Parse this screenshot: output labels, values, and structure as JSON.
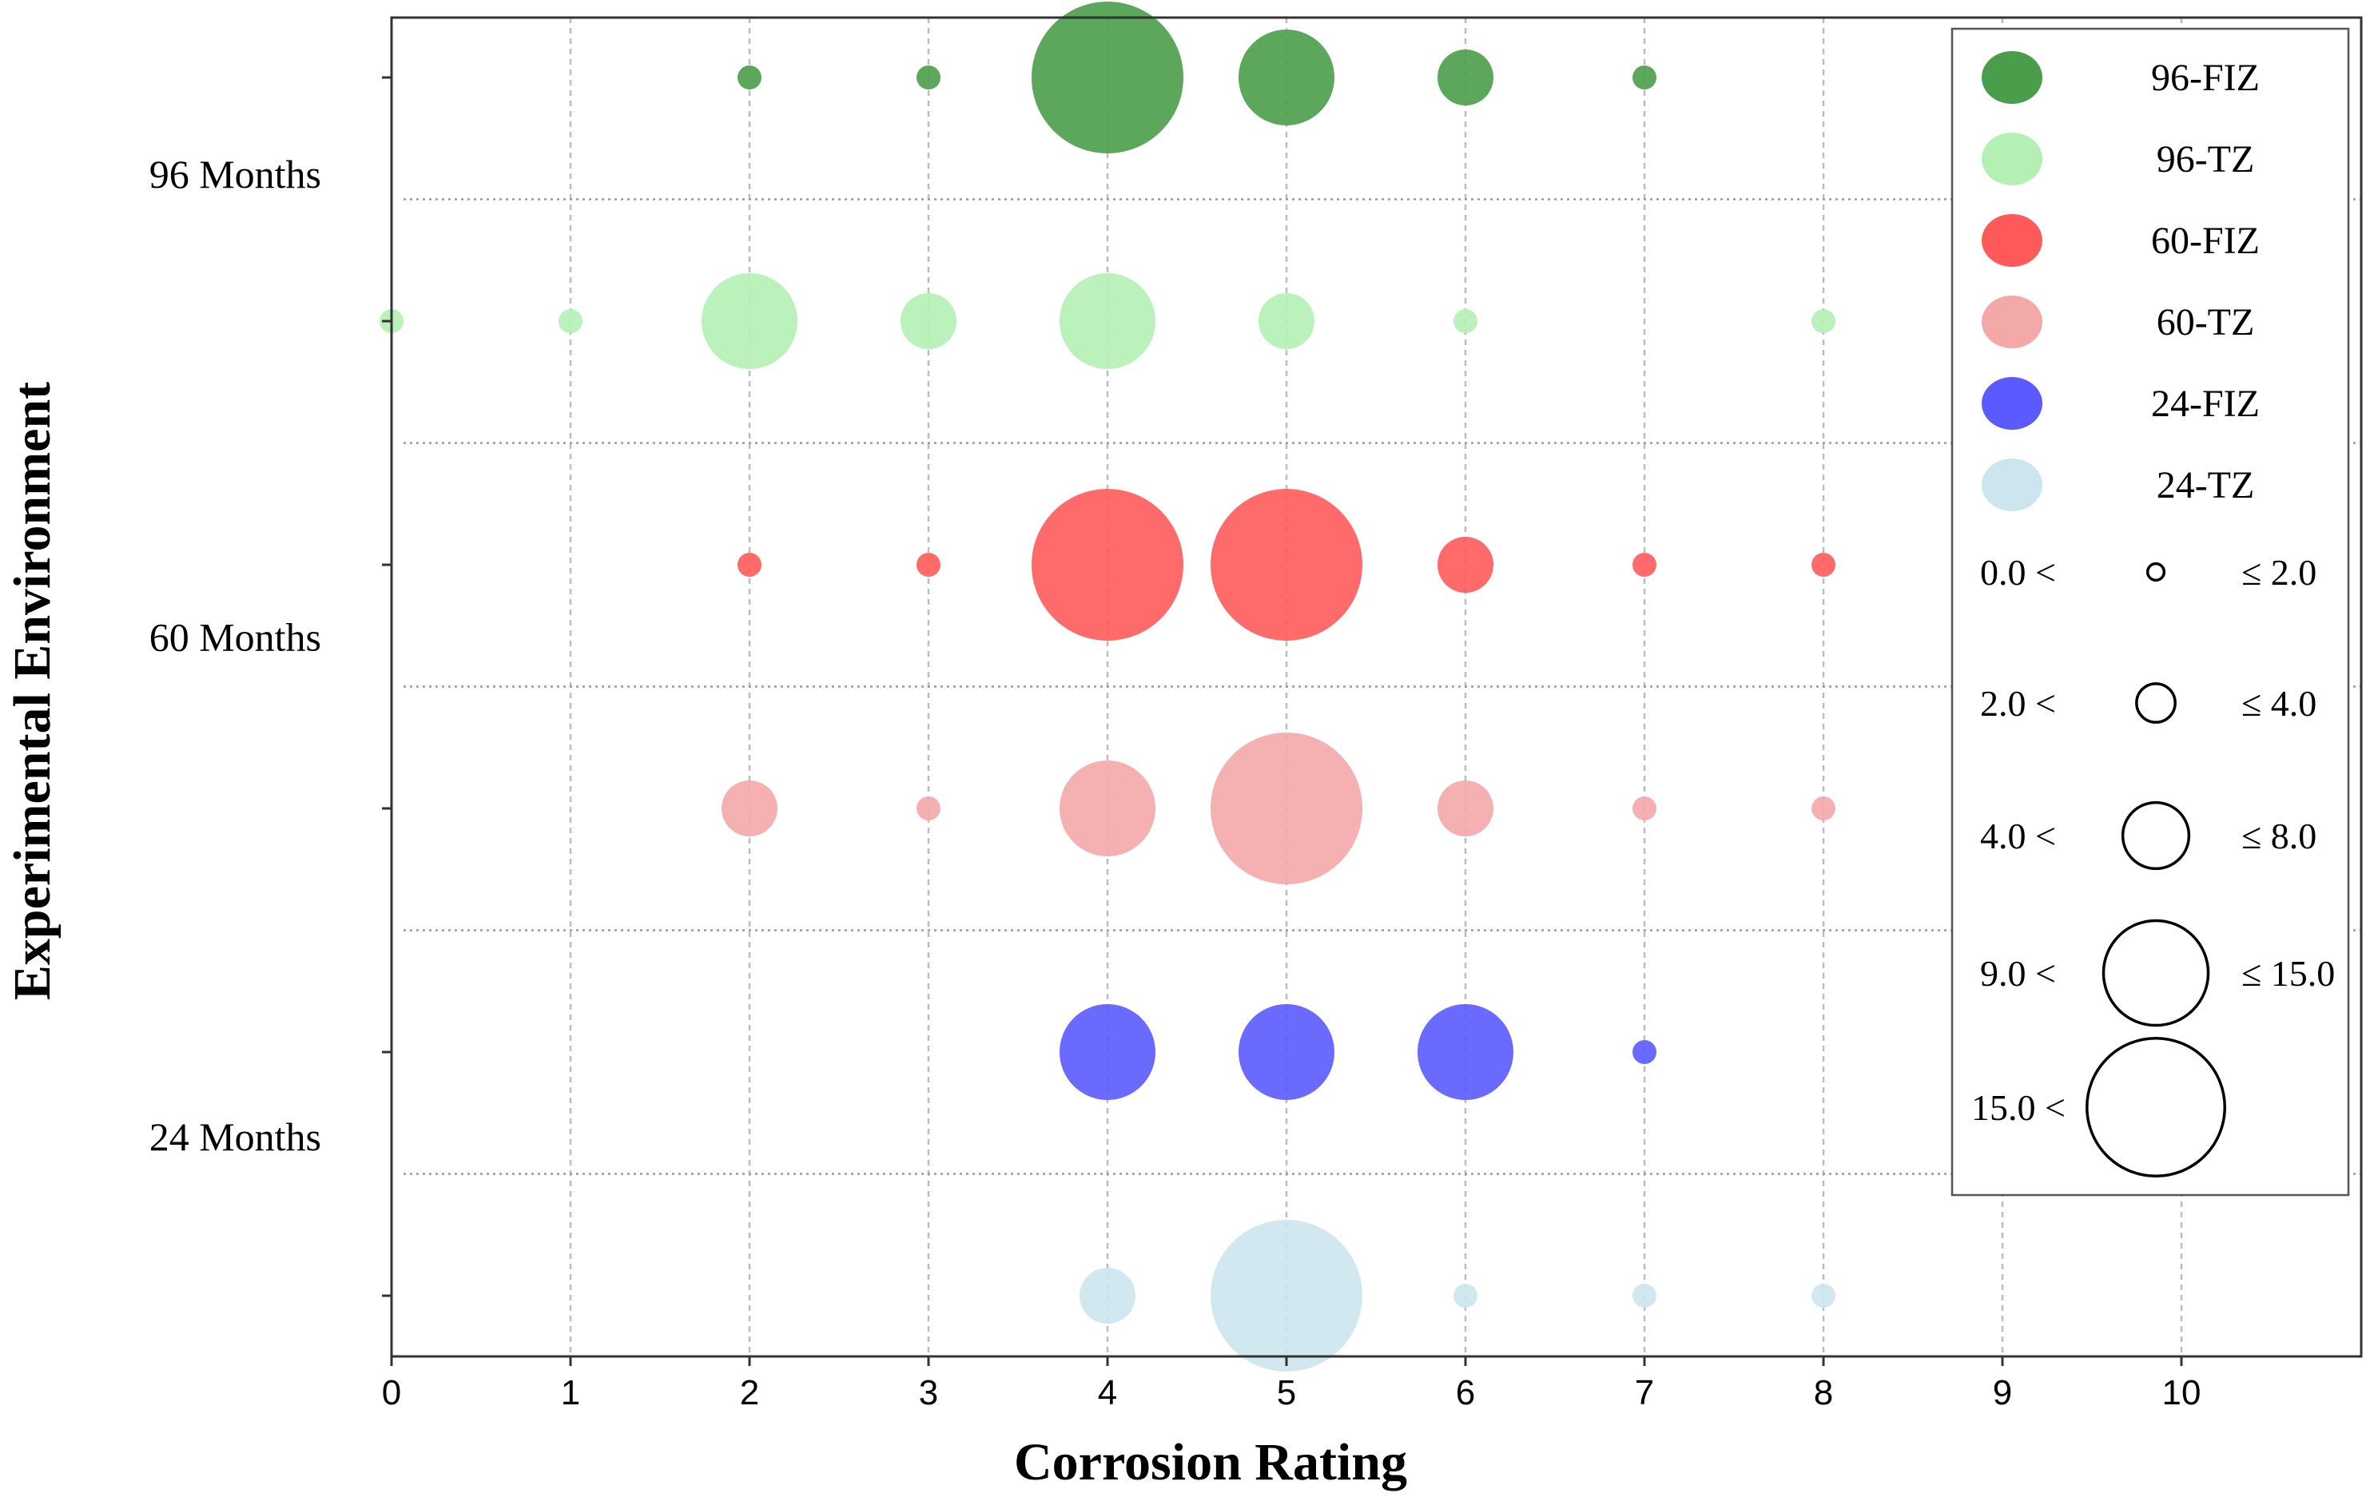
{
  "chart_data": {
    "type": "scatter",
    "subtype": "bubble",
    "title": "",
    "xlabel": "Corrosion Rating",
    "ylabel": "Experimental Environment",
    "xlim": [
      0,
      11
    ],
    "xticks": [
      "0",
      "1",
      "2",
      "3",
      "4",
      "5",
      "6",
      "7",
      "8",
      "9",
      "10"
    ],
    "ylim": [
      0.5,
      6.5
    ],
    "ytick_labels": [
      {
        "label": "96 Months",
        "y": 5.6
      },
      {
        "label": "60 Months",
        "y": 3.7
      },
      {
        "label": "24 Months",
        "y": 1.65
      }
    ],
    "grid": true,
    "legend_position": "top-right",
    "series": [
      {
        "name": "96-FIZ",
        "color": "#4a9d4a",
        "y": 6,
        "points": [
          {
            "x": 2,
            "r": 1.5
          },
          {
            "x": 3,
            "r": 1.5
          },
          {
            "x": 4,
            "r": 9.5
          },
          {
            "x": 5,
            "r": 6
          },
          {
            "x": 6,
            "r": 3.5
          },
          {
            "x": 7,
            "r": 1.5
          }
        ]
      },
      {
        "name": "96-TZ",
        "color": "#b4f0b4",
        "y": 5,
        "points": [
          {
            "x": 0,
            "r": 1.5
          },
          {
            "x": 1,
            "r": 1.5
          },
          {
            "x": 2,
            "r": 6
          },
          {
            "x": 3,
            "r": 3.5
          },
          {
            "x": 4,
            "r": 6
          },
          {
            "x": 5,
            "r": 3.5
          },
          {
            "x": 6,
            "r": 1.5
          },
          {
            "x": 8,
            "r": 1.5
          }
        ]
      },
      {
        "name": "60-FIZ",
        "color": "#ff5a5a",
        "y": 4,
        "points": [
          {
            "x": 2,
            "r": 1.5
          },
          {
            "x": 3,
            "r": 1.5
          },
          {
            "x": 4,
            "r": 9.5
          },
          {
            "x": 5,
            "r": 9.5
          },
          {
            "x": 6,
            "r": 3.5
          },
          {
            "x": 7,
            "r": 1.5
          },
          {
            "x": 8,
            "r": 1.5
          }
        ]
      },
      {
        "name": "60-TZ",
        "color": "#f4a9a9",
        "y": 3,
        "points": [
          {
            "x": 2,
            "r": 3.5
          },
          {
            "x": 3,
            "r": 1.5
          },
          {
            "x": 4,
            "r": 6
          },
          {
            "x": 5,
            "r": 9.5
          },
          {
            "x": 6,
            "r": 3.5
          },
          {
            "x": 7,
            "r": 1.5
          },
          {
            "x": 8,
            "r": 1.5
          }
        ]
      },
      {
        "name": "24-FIZ",
        "color": "#5a5aff",
        "y": 2,
        "points": [
          {
            "x": 4,
            "r": 6
          },
          {
            "x": 5,
            "r": 6
          },
          {
            "x": 6,
            "r": 6
          },
          {
            "x": 7,
            "r": 1.5
          }
        ]
      },
      {
        "name": "24-TZ",
        "color": "#cde5ee",
        "y": 1,
        "points": [
          {
            "x": 4,
            "r": 3.5
          },
          {
            "x": 5,
            "r": 9.5
          },
          {
            "x": 6,
            "r": 1.5
          },
          {
            "x": 7,
            "r": 1.5
          },
          {
            "x": 8,
            "r": 1.5
          }
        ]
      }
    ],
    "size_legend": [
      {
        "low": "0.0 <",
        "high": "≤ 2.0",
        "r": 1.5
      },
      {
        "low": "2.0 <",
        "high": "≤ 4.0",
        "r": 3.5
      },
      {
        "low": "4.0 <",
        "high": "≤ 8.0",
        "r": 6
      },
      {
        "low": "9.0 <",
        "high": "≤ 15.0",
        "r": 9.5
      },
      {
        "low": "15.0 <",
        "high": "",
        "r": 12.5
      }
    ]
  }
}
